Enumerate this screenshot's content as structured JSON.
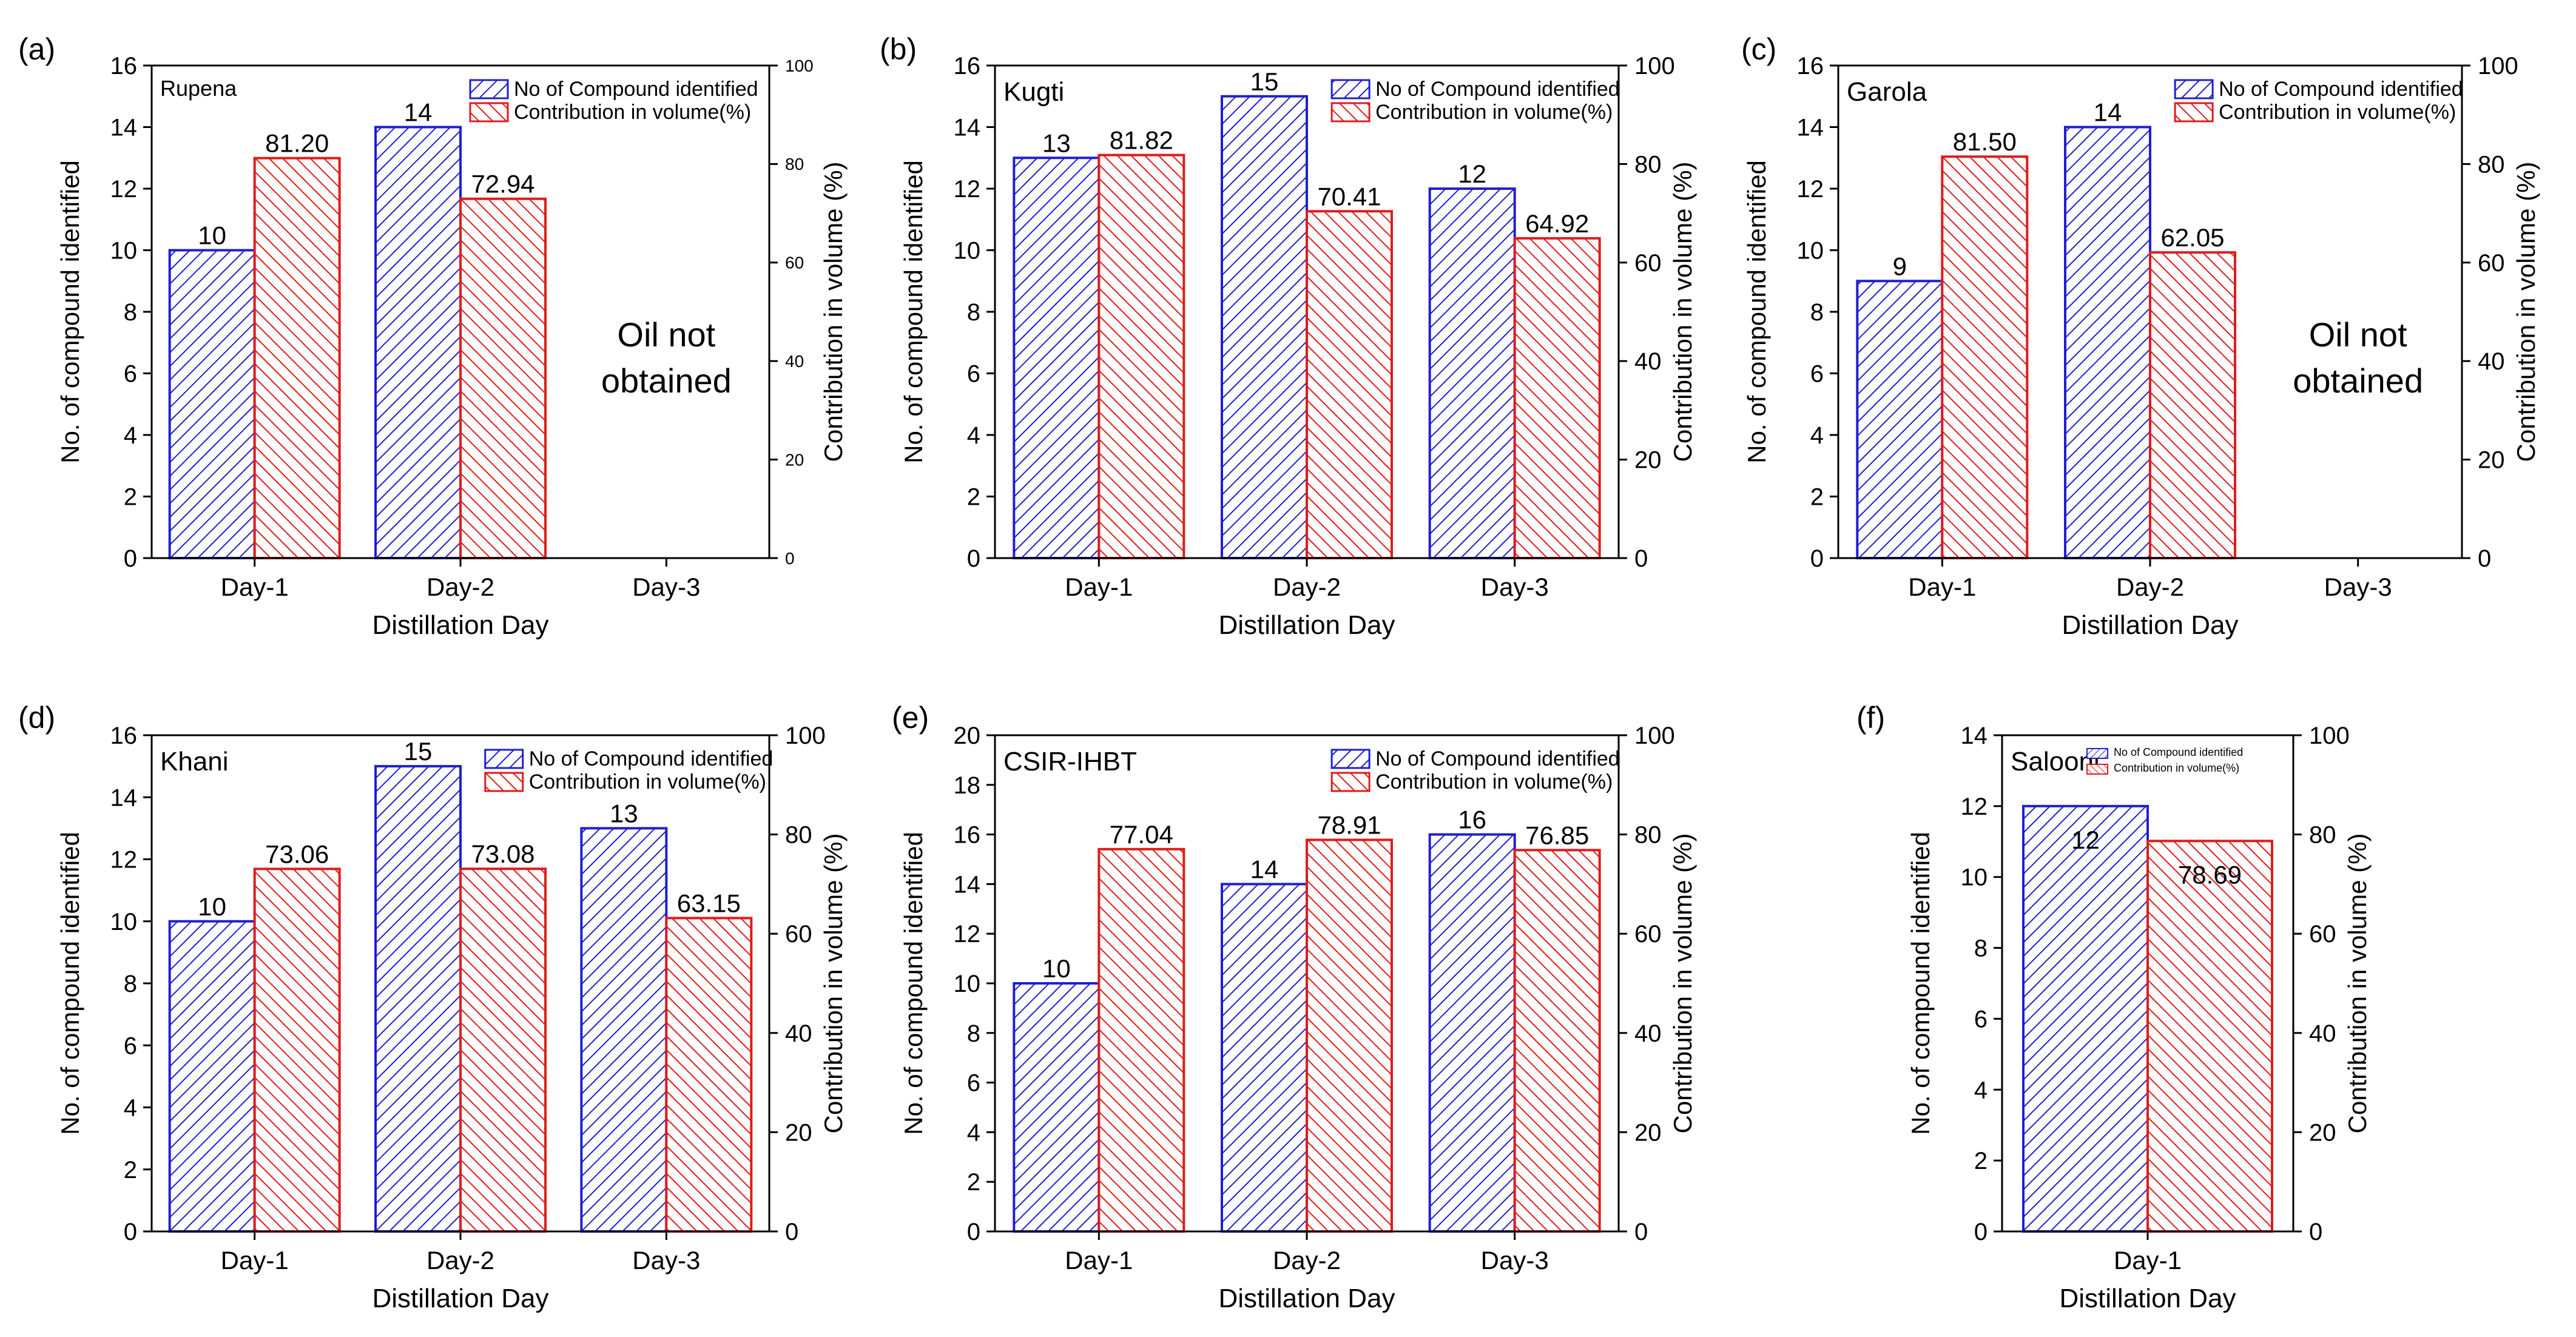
{
  "legend_labels": {
    "count": "No of Compound identified",
    "volume": "Contribution in volume(%)"
  },
  "note_oil": [
    "Oil not",
    "obtained"
  ],
  "colors": {
    "count": "#1f1fd0",
    "volume": "#e01b1b"
  },
  "chart_data": [
    {
      "type": "bar",
      "panel": "(a)",
      "title": "Rupena",
      "categories": [
        "Day-1",
        "Day-2",
        "Day-3"
      ],
      "series": [
        {
          "name": "No of Compound identified",
          "axis": "left",
          "values": [
            10,
            14,
            null
          ],
          "labels": [
            "10",
            "14",
            ""
          ]
        },
        {
          "name": "Contribution in volume(%)",
          "axis": "right",
          "values": [
            81.2,
            72.94,
            null
          ],
          "labels": [
            "81.20",
            "72.94",
            ""
          ]
        }
      ],
      "xlabel": "Distillation Day",
      "ylabel": "No. of compound identified",
      "y2label": "Contribution in volume (%)",
      "ylim": [
        0,
        16
      ],
      "yticks": [
        0,
        2,
        4,
        6,
        8,
        10,
        12,
        14,
        16
      ],
      "y2lim": [
        0,
        100
      ],
      "y2ticks": [
        0,
        20,
        40,
        60,
        80,
        100
      ],
      "note": true,
      "small_right_ticks": true,
      "legend_scale": "normal"
    },
    {
      "type": "bar",
      "panel": "(b)",
      "title": "Kugti",
      "categories": [
        "Day-1",
        "Day-2",
        "Day-3"
      ],
      "series": [
        {
          "name": "No of Compound identified",
          "axis": "left",
          "values": [
            13,
            15,
            12
          ],
          "labels": [
            "13",
            "15",
            "12"
          ]
        },
        {
          "name": "Contribution in volume(%)",
          "axis": "right",
          "values": [
            81.82,
            70.41,
            64.92
          ],
          "labels": [
            "81.82",
            "70.41",
            "64.92"
          ]
        }
      ],
      "xlabel": "Distillation Day",
      "ylabel": "No. of compound identified",
      "y2label": "Contribution in volume (%)",
      "ylim": [
        0,
        16
      ],
      "yticks": [
        0,
        2,
        4,
        6,
        8,
        10,
        12,
        14,
        16
      ],
      "y2lim": [
        0,
        100
      ],
      "y2ticks": [
        0,
        20,
        40,
        60,
        80,
        100
      ],
      "note": false,
      "small_right_ticks": false,
      "legend_scale": "normal"
    },
    {
      "type": "bar",
      "panel": "(c)",
      "title": "Garola",
      "categories": [
        "Day-1",
        "Day-2",
        "Day-3"
      ],
      "series": [
        {
          "name": "No of Compound identified",
          "axis": "left",
          "values": [
            9,
            14,
            null
          ],
          "labels": [
            "9",
            "14",
            ""
          ]
        },
        {
          "name": "Contribution in volume(%)",
          "axis": "right",
          "values": [
            81.5,
            62.05,
            null
          ],
          "labels": [
            "81.50",
            "62.05",
            ""
          ]
        }
      ],
      "xlabel": "Distillation Day",
      "ylabel": "No. of compound identified",
      "y2label": "Contribution in volume (%)",
      "ylim": [
        0,
        16
      ],
      "yticks": [
        0,
        2,
        4,
        6,
        8,
        10,
        12,
        14,
        16
      ],
      "y2lim": [
        0,
        100
      ],
      "y2ticks": [
        0,
        20,
        40,
        60,
        80,
        100
      ],
      "note": true,
      "small_right_ticks": false,
      "legend_scale": "normal"
    },
    {
      "type": "bar",
      "panel": "(d)",
      "title": "Khani",
      "categories": [
        "Day-1",
        "Day-2",
        "Day-3"
      ],
      "series": [
        {
          "name": "No of Compound identified",
          "axis": "left",
          "values": [
            10,
            15,
            13
          ],
          "labels": [
            "10",
            "15",
            "13"
          ]
        },
        {
          "name": "Contribution in volume(%)",
          "axis": "right",
          "values": [
            73.06,
            73.08,
            63.15
          ],
          "labels": [
            "73.06",
            "73.08",
            "63.15"
          ]
        }
      ],
      "xlabel": "Distillation Day",
      "ylabel": "No. of compound identified",
      "y2label": "Contribution in volume (%)",
      "ylim": [
        0,
        16
      ],
      "yticks": [
        0,
        2,
        4,
        6,
        8,
        10,
        12,
        14,
        16
      ],
      "y2lim": [
        0,
        100
      ],
      "y2ticks": [
        0,
        20,
        40,
        60,
        80,
        100
      ],
      "note": false,
      "small_right_ticks": false,
      "legend_scale": "normal"
    },
    {
      "type": "bar",
      "panel": "(e)",
      "title": "CSIR-IHBT",
      "categories": [
        "Day-1",
        "Day-2",
        "Day-3"
      ],
      "series": [
        {
          "name": "No of Compound identified",
          "axis": "left",
          "values": [
            10,
            14,
            16
          ],
          "labels": [
            "10",
            "14",
            "16"
          ]
        },
        {
          "name": "Contribution in volume(%)",
          "axis": "right",
          "values": [
            77.04,
            78.91,
            76.85
          ],
          "labels": [
            "77.04",
            "78.91",
            "76.85"
          ]
        }
      ],
      "xlabel": "Distillation Day",
      "ylabel": "No. of compound identified",
      "y2label": "Contribution in volume (%)",
      "ylim": [
        0,
        20
      ],
      "yticks": [
        0,
        2,
        4,
        6,
        8,
        10,
        12,
        14,
        16,
        18,
        20
      ],
      "y2lim": [
        0,
        100
      ],
      "y2ticks": [
        0,
        20,
        40,
        60,
        80,
        100
      ],
      "note": false,
      "small_right_ticks": false,
      "legend_scale": "normal"
    },
    {
      "type": "bar",
      "panel": "(f)",
      "title": "Salooni",
      "categories": [
        "Day-1"
      ],
      "series": [
        {
          "name": "No of Compound identified",
          "axis": "left",
          "values": [
            12
          ],
          "labels": [
            "12"
          ]
        },
        {
          "name": "Contribution in volume(%)",
          "axis": "right",
          "values": [
            78.69
          ],
          "labels": [
            "78.69"
          ]
        }
      ],
      "xlabel": "Distillation Day",
      "ylabel": "No. of compound identified",
      "y2label": "Contribution in volume (%)",
      "ylim": [
        0,
        14
      ],
      "yticks": [
        0,
        2,
        4,
        6,
        8,
        10,
        12,
        14
      ],
      "y2lim": [
        0,
        100
      ],
      "y2ticks": [
        0,
        20,
        40,
        60,
        80,
        100
      ],
      "note": false,
      "small_right_ticks": false,
      "legend_scale": "tiny"
    }
  ]
}
